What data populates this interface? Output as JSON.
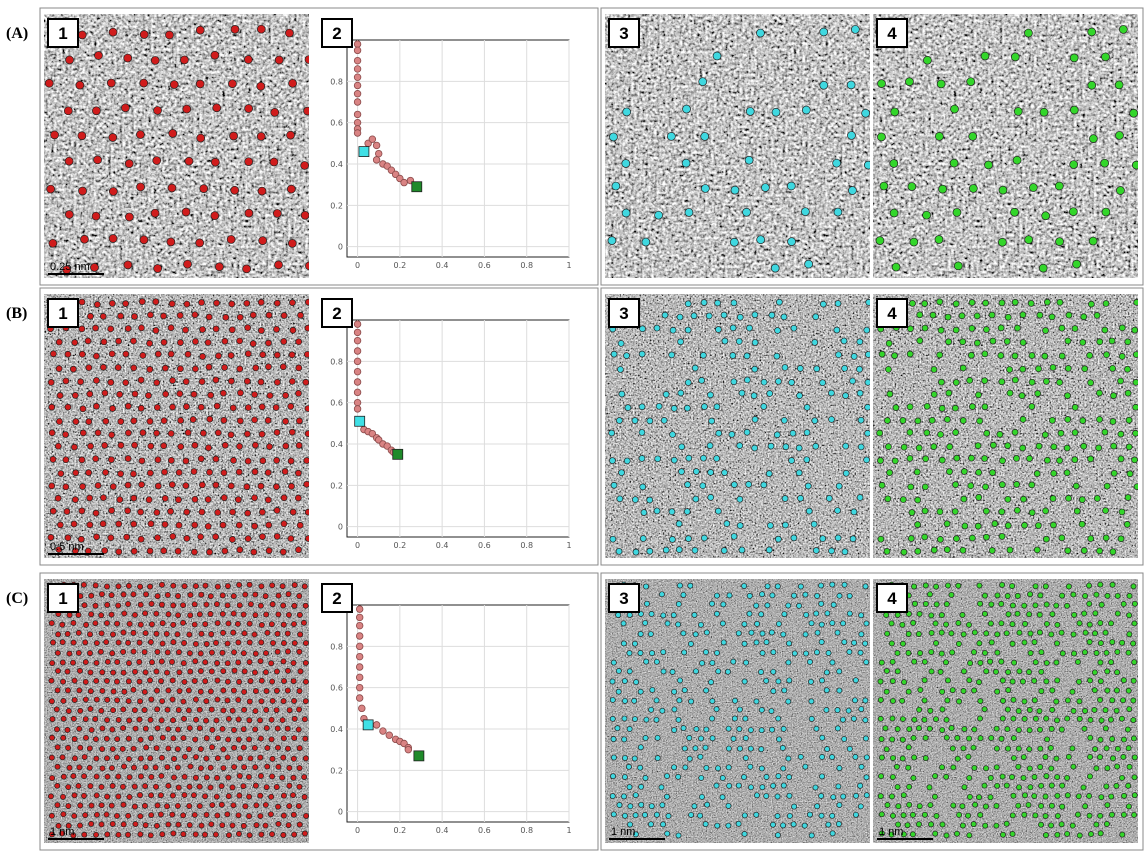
{
  "rows": [
    {
      "label": "(A)",
      "badges": [
        "1",
        "2",
        "3",
        "4"
      ],
      "scale_bars": {
        "1": "0.25 nm"
      }
    },
    {
      "label": "(B)",
      "badges": [
        "1",
        "2",
        "3",
        "4"
      ],
      "scale_bars": {
        "1": "0.5 nm"
      }
    },
    {
      "label": "(C)",
      "badges": [
        "1",
        "2",
        "3",
        "4"
      ],
      "scale_bars": {
        "1": "1 nm",
        "3": "1 nm",
        "4": "1 nm"
      }
    }
  ],
  "chart_data": [
    {
      "type": "scatter",
      "xlim": [
        -0.05,
        1
      ],
      "ylim": [
        -0.05,
        1
      ],
      "xticks": [
        0,
        0.2,
        0.4,
        0.6,
        0.8,
        1
      ],
      "yticks": [
        0,
        0.2,
        0.4,
        0.6,
        0.8
      ],
      "grid": true,
      "series": [
        {
          "color": "#d98383",
          "marker": "circle",
          "x": [
            0,
            0,
            0,
            0,
            0,
            0,
            0,
            0,
            0,
            0,
            0,
            0,
            0.05,
            0.07,
            0.09,
            0.1,
            0.09,
            0.12,
            0.14,
            0.16,
            0.18,
            0.2,
            0.22,
            0.25
          ],
          "y": [
            0.98,
            0.95,
            0.9,
            0.86,
            0.82,
            0.78,
            0.74,
            0.7,
            0.64,
            0.6,
            0.57,
            0.55,
            0.5,
            0.52,
            0.49,
            0.45,
            0.42,
            0.4,
            0.39,
            0.37,
            0.35,
            0.33,
            0.31,
            0.32
          ]
        },
        {
          "color": "#3fe0e6",
          "marker": "square",
          "x": [
            0.03
          ],
          "y": [
            0.46
          ]
        },
        {
          "color": "#1f8a2a",
          "marker": "square",
          "x": [
            0.28
          ],
          "y": [
            0.29
          ]
        }
      ]
    },
    {
      "type": "scatter",
      "xlim": [
        -0.05,
        1
      ],
      "ylim": [
        -0.05,
        1
      ],
      "xticks": [
        0,
        0.2,
        0.4,
        0.6,
        0.8,
        1
      ],
      "yticks": [
        0,
        0.2,
        0.4,
        0.6,
        0.8
      ],
      "grid": true,
      "series": [
        {
          "color": "#d98383",
          "marker": "circle",
          "x": [
            0,
            0,
            0,
            0,
            0,
            0,
            0,
            0,
            0,
            0,
            0.03,
            0.05,
            0.07,
            0.09,
            0.1,
            0.12,
            0.14,
            0.16,
            0.17
          ],
          "y": [
            0.98,
            0.94,
            0.9,
            0.85,
            0.8,
            0.75,
            0.7,
            0.65,
            0.6,
            0.57,
            0.47,
            0.46,
            0.45,
            0.43,
            0.42,
            0.4,
            0.39,
            0.37,
            0.36
          ]
        },
        {
          "color": "#3fe0e6",
          "marker": "square",
          "x": [
            0.01
          ],
          "y": [
            0.51
          ]
        },
        {
          "color": "#1f8a2a",
          "marker": "square",
          "x": [
            0.19
          ],
          "y": [
            0.35
          ]
        }
      ]
    },
    {
      "type": "scatter",
      "xlim": [
        -0.05,
        1
      ],
      "ylim": [
        -0.05,
        1
      ],
      "xticks": [
        0,
        0.2,
        0.4,
        0.6,
        0.8,
        1
      ],
      "yticks": [
        0,
        0.2,
        0.4,
        0.6,
        0.8
      ],
      "grid": true,
      "series": [
        {
          "color": "#d98383",
          "marker": "circle",
          "x": [
            0.01,
            0.01,
            0.01,
            0.01,
            0.01,
            0.01,
            0.01,
            0.01,
            0.01,
            0.01,
            0.02,
            0.03,
            0.09,
            0.12,
            0.15,
            0.18,
            0.2,
            0.22,
            0.24,
            0.24
          ],
          "y": [
            0.98,
            0.94,
            0.9,
            0.85,
            0.8,
            0.75,
            0.7,
            0.65,
            0.6,
            0.55,
            0.5,
            0.45,
            0.42,
            0.39,
            0.37,
            0.35,
            0.34,
            0.33,
            0.31,
            0.3
          ]
        },
        {
          "color": "#3fe0e6",
          "marker": "square",
          "x": [
            0.05
          ],
          "y": [
            0.42
          ]
        },
        {
          "color": "#1f8a2a",
          "marker": "square",
          "x": [
            0.29
          ],
          "y": [
            0.27
          ]
        }
      ]
    }
  ]
}
